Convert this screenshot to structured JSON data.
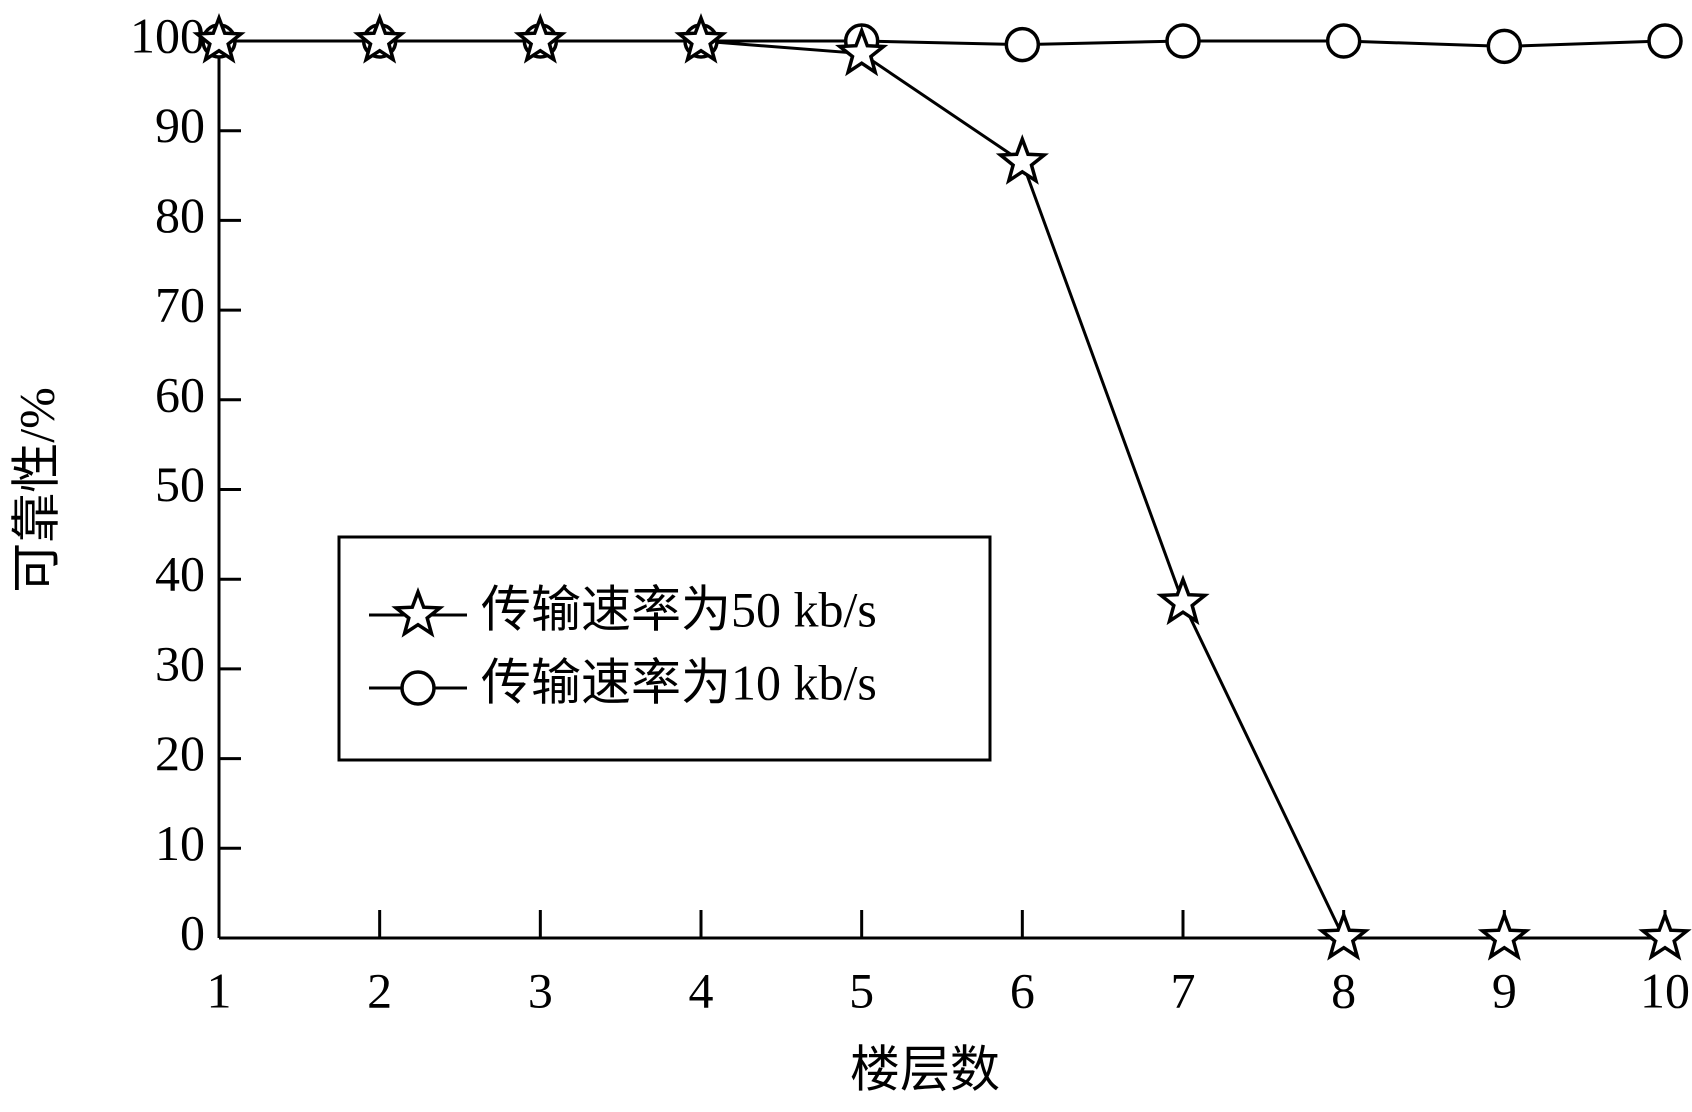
{
  "chart_data": {
    "type": "line",
    "x_label": "楼层数",
    "y_label": "可靠性/%",
    "x": [
      1,
      2,
      3,
      4,
      5,
      6,
      7,
      8,
      9,
      10
    ],
    "series": [
      {
        "name": "传输速率为50 kb/s",
        "color": "#000000",
        "marker": "star",
        "values": [
          100,
          100,
          100,
          100,
          98.6,
          86.5,
          37.4,
          0,
          0,
          0
        ]
      },
      {
        "name": "传输速率为10 kb/s",
        "color": "#000000",
        "marker": "circle",
        "values": [
          100,
          100,
          100,
          100,
          100,
          99.6,
          100,
          100,
          99.4,
          100
        ]
      }
    ],
    "xlim": [
      1,
      10
    ],
    "xticks": [
      1,
      2,
      3,
      4,
      5,
      6,
      7,
      8,
      9,
      10
    ],
    "ylim": [
      0,
      100
    ],
    "yticks": [
      0,
      10,
      20,
      30,
      40,
      50,
      60,
      70,
      80,
      90,
      100
    ],
    "grid": false
  }
}
